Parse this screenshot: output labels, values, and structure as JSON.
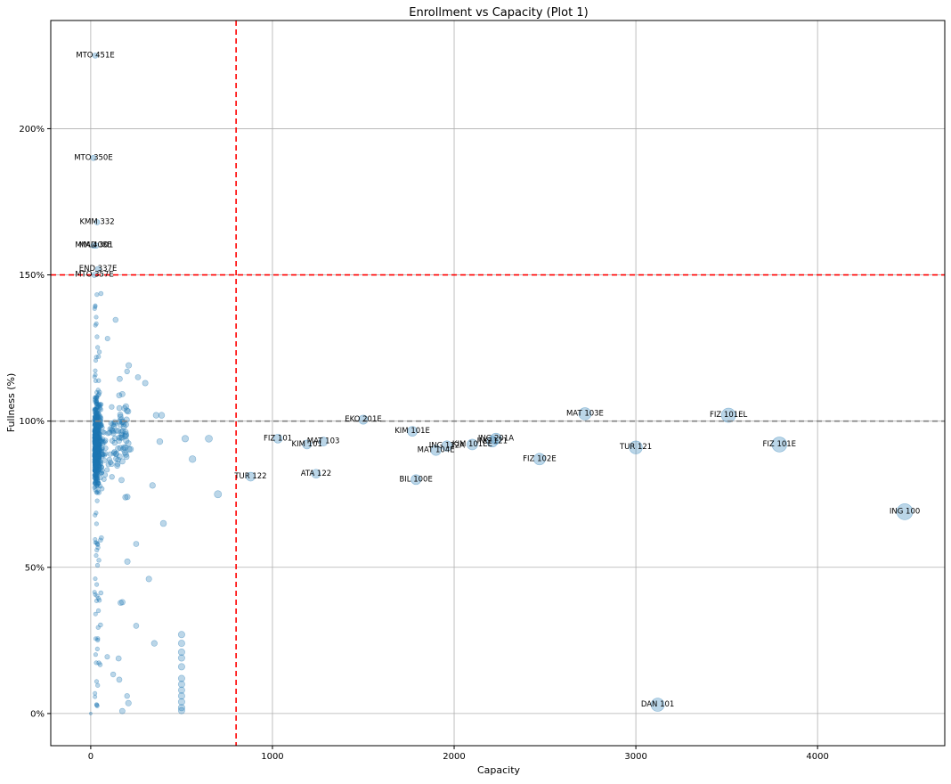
{
  "chart_data": {
    "type": "scatter",
    "title": "Enrollment vs Capacity (Plot 1)",
    "xlabel": "Capacity",
    "ylabel": "Fullness (%)",
    "xlim": [
      -220,
      4700
    ],
    "ylim": [
      -0.11,
      2.37
    ],
    "x_ticks": [
      0,
      1000,
      2000,
      3000,
      4000
    ],
    "x_tick_labels": [
      "0",
      "1000",
      "2000",
      "3000",
      "4000"
    ],
    "y_ticks": [
      0,
      0.5,
      1.0,
      1.5,
      2.0
    ],
    "y_tick_labels": [
      "0%",
      "50%",
      "100%",
      "150%",
      "200%"
    ],
    "grid": true,
    "point_color": "#1f77b4",
    "point_opacity": 0.3,
    "reference_lines": [
      {
        "orientation": "vertical",
        "value": 800,
        "color": "#ff0000",
        "style": "dashed"
      },
      {
        "orientation": "horizontal",
        "value": 1.5,
        "color": "#ff0000",
        "style": "dashed"
      },
      {
        "orientation": "horizontal",
        "value": 1.0,
        "color": "#808080",
        "style": "dashed"
      }
    ],
    "labeled_points": [
      {
        "label": "MTO 451E",
        "x": 25,
        "y": 2.25
      },
      {
        "label": "MTO 350E",
        "x": 15,
        "y": 1.9
      },
      {
        "label": "KMM 332",
        "x": 35,
        "y": 1.68
      },
      {
        "label": "MIM 408E",
        "x": 15,
        "y": 1.6
      },
      {
        "label": "MAD 301",
        "x": 30,
        "y": 1.6
      },
      {
        "label": "END 337E",
        "x": 40,
        "y": 1.52
      },
      {
        "label": "MTO 357E",
        "x": 20,
        "y": 1.5
      },
      {
        "label": "TUR 122",
        "x": 880,
        "y": 0.81
      },
      {
        "label": "FIZ 101",
        "x": 1030,
        "y": 0.94
      },
      {
        "label": "KIM 101",
        "x": 1190,
        "y": 0.92
      },
      {
        "label": "MAT 103",
        "x": 1280,
        "y": 0.93
      },
      {
        "label": "ATA 122",
        "x": 1240,
        "y": 0.82
      },
      {
        "label": "EKO 201E",
        "x": 1500,
        "y": 1.005
      },
      {
        "label": "KIM 101E",
        "x": 1770,
        "y": 0.965
      },
      {
        "label": "BIL 100E",
        "x": 1790,
        "y": 0.8
      },
      {
        "label": "ING 112A",
        "x": 1960,
        "y": 0.915
      },
      {
        "label": "MAT 104E",
        "x": 1900,
        "y": 0.9
      },
      {
        "label": "KIM 101EE",
        "x": 2100,
        "y": 0.92
      },
      {
        "label": "ING 201A",
        "x": 2230,
        "y": 0.94
      },
      {
        "label": "ING 121",
        "x": 2210,
        "y": 0.93
      },
      {
        "label": "FIZ 102E",
        "x": 2470,
        "y": 0.87
      },
      {
        "label": "MAT 103E",
        "x": 2720,
        "y": 1.025
      },
      {
        "label": "TUR 121",
        "x": 3000,
        "y": 0.91
      },
      {
        "label": "DAN 101",
        "x": 3120,
        "y": 0.03
      },
      {
        "label": "FIZ 101EL",
        "x": 3510,
        "y": 1.02
      },
      {
        "label": "FIZ 101E",
        "x": 3790,
        "y": 0.92
      },
      {
        "label": "ING 100",
        "x": 4480,
        "y": 0.69
      }
    ],
    "unlabeled_points_note": "",
    "extra_points": [
      {
        "x": 500,
        "y": 0.27
      },
      {
        "x": 500,
        "y": 0.24
      },
      {
        "x": 500,
        "y": 0.21
      },
      {
        "x": 500,
        "y": 0.19
      },
      {
        "x": 500,
        "y": 0.16
      },
      {
        "x": 500,
        "y": 0.12
      },
      {
        "x": 500,
        "y": 0.1
      },
      {
        "x": 500,
        "y": 0.08
      },
      {
        "x": 500,
        "y": 0.06
      },
      {
        "x": 500,
        "y": 0.04
      },
      {
        "x": 500,
        "y": 0.02
      },
      {
        "x": 500,
        "y": 0.01
      },
      {
        "x": 520,
        "y": 0.94
      },
      {
        "x": 560,
        "y": 0.87
      },
      {
        "x": 650,
        "y": 0.94
      },
      {
        "x": 700,
        "y": 0.75
      },
      {
        "x": 400,
        "y": 0.65
      },
      {
        "x": 350,
        "y": 0.24
      },
      {
        "x": 320,
        "y": 0.46
      },
      {
        "x": 340,
        "y": 0.78
      },
      {
        "x": 380,
        "y": 0.93
      },
      {
        "x": 300,
        "y": 1.13
      },
      {
        "x": 260,
        "y": 1.15
      },
      {
        "x": 200,
        "y": 1.17
      },
      {
        "x": 360,
        "y": 1.02
      },
      {
        "x": 390,
        "y": 1.02
      },
      {
        "x": 0,
        "y": 0.0
      },
      {
        "x": 200,
        "y": 0.06
      },
      {
        "x": 250,
        "y": 0.3
      },
      {
        "x": 250,
        "y": 0.58
      }
    ]
  }
}
